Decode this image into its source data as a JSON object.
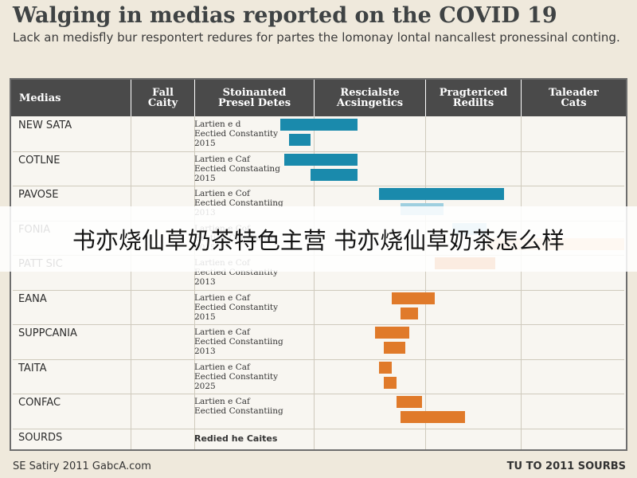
{
  "header": {
    "title": "Walging in medias reported on the COVID 19",
    "subtitle": "Lack an medisfly bur respontert redures for partes the lomonay lontal nancallest pronessinal conting."
  },
  "chart_data": {
    "type": "bar",
    "columns": [
      "Medias",
      "Fall\nCaity",
      "Stoinanted\nPresel Detes",
      "Rescialste\nAcsingetics",
      "Pragtericed\nRedilts",
      "Taleader\nCats"
    ],
    "rows": [
      {
        "label": "NEW SATA",
        "note": "Lartien e d\nEectied Constantity\n2015"
      },
      {
        "label": "COTLNE",
        "note": "Lartien e Caf\nEectied Constaating\n2015"
      },
      {
        "label": "PAVOSE",
        "note": "Lartien e Cof\nEectied Constantiing\n2013"
      },
      {
        "label": "FONIA",
        "note": "Lartien e Cof\nEectied Constantity\n2015"
      },
      {
        "label": "PATT SIC",
        "note": "Lartien e Cof\nEectied Constantity\n2013"
      },
      {
        "label": "EANA",
        "note": "Lartien e Caf\nEectied Constantity\n2015"
      },
      {
        "label": "SUPPCANIA",
        "note": "Lartien e Caf\nEectied Constantiing\n2013"
      },
      {
        "label": "TAITA",
        "note": "Lartien e Caf\nEectied Constantity\n2025"
      },
      {
        "label": "CONFAC",
        "note": "Lartien e Caf\nEectied Constantiing"
      },
      {
        "label": "SOURDS",
        "note": ""
      }
    ],
    "sources_note": "Redied he Caites",
    "x_range": [
      0,
      100
    ],
    "bars": [
      {
        "row": 0,
        "start": 20,
        "end": 38,
        "color": "#1a8aac"
      },
      {
        "row": 0,
        "start": 22,
        "end": 27,
        "color": "#1a8aac"
      },
      {
        "row": 1,
        "start": 21,
        "end": 38,
        "color": "#1a8aac"
      },
      {
        "row": 1,
        "start": 27,
        "end": 38,
        "color": "#1a8aac"
      },
      {
        "row": 2,
        "start": 43,
        "end": 72,
        "color": "#1a8aac"
      },
      {
        "row": 2,
        "start": 48,
        "end": 58,
        "color": "#9ecfdf"
      },
      {
        "row": 3,
        "start": 60,
        "end": 68,
        "color": "#9ecfdf"
      },
      {
        "row": 3,
        "start": 68,
        "end": 100,
        "color": "#f3c9a6"
      },
      {
        "row": 4,
        "start": 56,
        "end": 70,
        "color": "#e07a2a"
      },
      {
        "row": 5,
        "start": 46,
        "end": 56,
        "color": "#e07a2a"
      },
      {
        "row": 5,
        "start": 48,
        "end": 52,
        "color": "#e07a2a"
      },
      {
        "row": 6,
        "start": 42,
        "end": 50,
        "color": "#e07a2a"
      },
      {
        "row": 6,
        "start": 44,
        "end": 49,
        "color": "#e07a2a"
      },
      {
        "row": 7,
        "start": 43,
        "end": 46,
        "color": "#e07a2a"
      },
      {
        "row": 7,
        "start": 44,
        "end": 47,
        "color": "#e07a2a"
      },
      {
        "row": 8,
        "start": 47,
        "end": 53,
        "color": "#e07a2a"
      },
      {
        "row": 8,
        "start": 48,
        "end": 63,
        "color": "#e07a2a"
      }
    ]
  },
  "overlay": {
    "banner_text": "书亦烧仙草奶茶特色主营 书亦烧仙草奶茶怎么样"
  },
  "footer": {
    "left": "SE Satiry 2011 GabcA.com",
    "right": "TU TO 2011 SOURBS"
  }
}
